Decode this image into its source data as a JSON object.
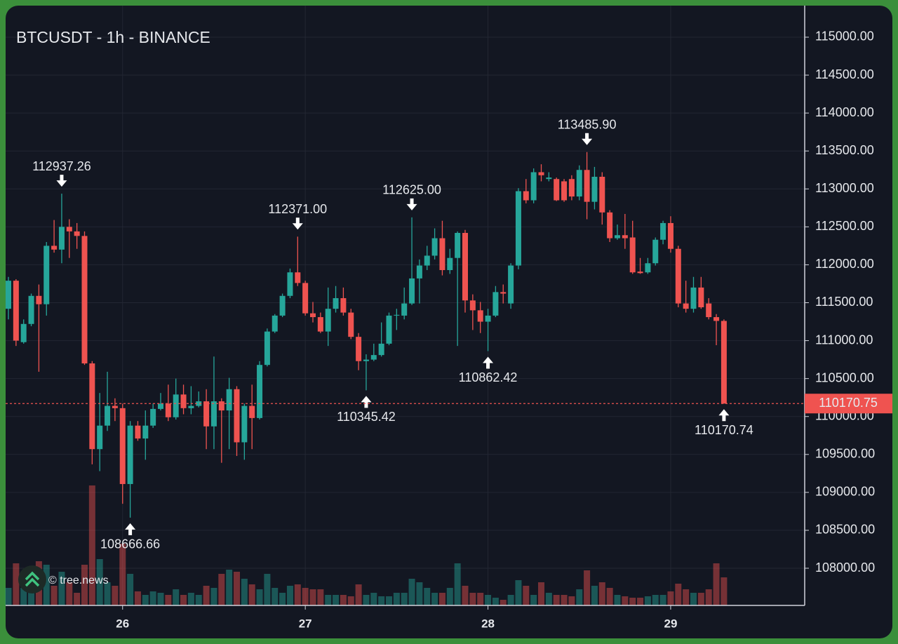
{
  "chart_data": {
    "type": "candlestick",
    "title": "BTCUSDT - 1h - BINANCE",
    "watermark": "© tree.news",
    "categories": [
      null,
      null,
      null,
      null,
      null,
      null,
      null,
      null,
      null,
      null,
      null,
      null,
      null,
      null,
      null,
      "26",
      null,
      null,
      null,
      null,
      null,
      null,
      null,
      null,
      null,
      null,
      null,
      null,
      null,
      null,
      null,
      null,
      null,
      null,
      null,
      null,
      null,
      null,
      null,
      "27",
      null,
      null,
      null,
      null,
      null,
      null,
      null,
      null,
      null,
      null,
      null,
      null,
      null,
      null,
      null,
      null,
      null,
      null,
      null,
      null,
      null,
      null,
      null,
      "28",
      null,
      null,
      null,
      null,
      null,
      null,
      null,
      null,
      null,
      null,
      null,
      null,
      null,
      null,
      null,
      null,
      null,
      null,
      null,
      null,
      null,
      null,
      null,
      "29",
      null,
      null,
      null,
      null,
      null,
      null,
      null
    ],
    "open": [
      111420,
      111790,
      110980,
      111220,
      111590,
      111480,
      112250,
      112200,
      112500,
      112440,
      112380,
      110700,
      109570,
      109880,
      110140,
      110110,
      109110,
      109880,
      109710,
      109880,
      110100,
      110170,
      109990,
      110290,
      110110,
      110140,
      110200,
      109870,
      110200,
      110080,
      110360,
      109660,
      110140,
      109980,
      110680,
      111120,
      111330,
      111590,
      111900,
      111760,
      111360,
      111310,
      111120,
      111420,
      111560,
      111370,
      111050,
      110730,
      110750,
      110810,
      110960,
      111330,
      111330,
      111490,
      111820,
      111990,
      112120,
      112350,
      111930,
      112090,
      112420,
      111530,
      111400,
      111250,
      111330,
      111640,
      111490,
      111990,
      112970,
      112850,
      113220,
      113130,
      113130,
      113100,
      113130,
      112900,
      113250,
      112830,
      113160,
      112690,
      112350,
      112390,
      112360,
      111910,
      111900,
      112020,
      112330,
      112550,
      112210,
      111490,
      111420,
      111700,
      111490,
      111310,
      111260
    ],
    "high": [
      111840,
      111810,
      111280,
      111620,
      111740,
      112300,
      112590,
      112937.26,
      112600,
      112550,
      112440,
      110730,
      110310,
      110590,
      110240,
      110170,
      109940,
      109940,
      110080,
      110170,
      110310,
      110420,
      110500,
      110420,
      110400,
      110330,
      110360,
      110790,
      110240,
      110510,
      110400,
      110170,
      110420,
      110730,
      111160,
      111350,
      111620,
      111950,
      112371,
      111790,
      111510,
      111370,
      111700,
      111720,
      111700,
      111420,
      111100,
      110820,
      110960,
      111240,
      111370,
      111420,
      111700,
      112625,
      112070,
      112250,
      112480,
      112580,
      112210,
      112440,
      112460,
      111610,
      111510,
      111420,
      111720,
      111740,
      112020,
      113010,
      113130,
      113270,
      113325,
      113220,
      113150,
      113130,
      113180,
      113310,
      113485.9,
      113290,
      113220,
      112720,
      112530,
      112670,
      112580,
      112090,
      112090,
      112360,
      112580,
      112640,
      112250,
      111790,
      111840,
      111840,
      111560,
      111350,
      111280
    ],
    "low": [
      111280,
      110930,
      110960,
      111190,
      110590,
      111330,
      112160,
      112020,
      112090,
      112210,
      110680,
      109370,
      109280,
      109810,
      109940,
      108850,
      108666.66,
      109680,
      109430,
      109850,
      110080,
      109940,
      109960,
      110030,
      110030,
      110120,
      109570,
      109570,
      109390,
      109570,
      109480,
      109430,
      109570,
      109960,
      110660,
      111100,
      111310,
      111560,
      111720,
      111330,
      111240,
      111100,
      110930,
      111370,
      111330,
      111020,
      110610,
      110345.42,
      110730,
      110790,
      110940,
      111140,
      111280,
      111470,
      111490,
      111930,
      112070,
      111860,
      111880,
      110930,
      111370,
      111140,
      111100,
      110862.42,
      111310,
      111490,
      111420,
      111940,
      112810,
      112810,
      113100,
      113100,
      112840,
      112830,
      112850,
      112850,
      112600,
      112730,
      112530,
      112300,
      112330,
      112210,
      111880,
      111880,
      111880,
      111990,
      112270,
      112160,
      111440,
      111370,
      111370,
      111420,
      111280,
      110940,
      110170.74
    ],
    "close": [
      111790,
      111000,
      111220,
      111590,
      111480,
      112250,
      112200,
      112500,
      112440,
      112380,
      110700,
      109570,
      109880,
      110140,
      110110,
      109110,
      109880,
      109710,
      109880,
      110100,
      110170,
      109990,
      110290,
      110110,
      110140,
      110200,
      109870,
      110200,
      110080,
      110360,
      109660,
      110140,
      109980,
      110680,
      111120,
      111330,
      111590,
      111900,
      111760,
      111360,
      111310,
      111120,
      111420,
      111560,
      111370,
      111050,
      110730,
      110750,
      110810,
      110960,
      111330,
      111340,
      111490,
      111820,
      111990,
      112120,
      112350,
      111930,
      112090,
      112420,
      111530,
      111400,
      111250,
      111330,
      111640,
      111620,
      111990,
      112970,
      112850,
      113220,
      113180,
      113150,
      112850,
      112850,
      112900,
      113250,
      112830,
      113160,
      112690,
      112350,
      112390,
      112350,
      111900,
      111890,
      112020,
      112330,
      112550,
      112210,
      111490,
      111420,
      111700,
      111440,
      111310,
      111260,
      110170.75
    ],
    "volume": [
      25,
      60,
      25,
      33,
      63,
      58,
      28,
      48,
      33,
      18,
      58,
      171,
      66,
      33,
      28,
      88,
      45,
      20,
      15,
      20,
      18,
      15,
      23,
      15,
      18,
      15,
      28,
      25,
      45,
      51,
      48,
      38,
      30,
      23,
      45,
      25,
      18,
      28,
      30,
      25,
      23,
      23,
      15,
      15,
      15,
      13,
      30,
      15,
      18,
      13,
      13,
      18,
      18,
      38,
      33,
      25,
      18,
      18,
      25,
      60,
      28,
      18,
      18,
      15,
      11,
      8,
      15,
      36,
      28,
      15,
      33,
      18,
      15,
      15,
      13,
      23,
      50,
      28,
      33,
      25,
      15,
      13,
      11,
      11,
      13,
      15,
      15,
      20,
      31,
      23,
      18,
      18,
      23,
      60,
      40
    ],
    "up_color": "#26a69a",
    "down_color": "#ef5350",
    "ylim": [
      107510,
      115416
    ],
    "yticks": [
      {
        "value": 108000,
        "label": "108000.00"
      },
      {
        "value": 108500,
        "label": "108500.00"
      },
      {
        "value": 109000,
        "label": "109000.00"
      },
      {
        "value": 109500,
        "label": "109500.00"
      },
      {
        "value": 110000,
        "label": "110000.00"
      },
      {
        "value": 110500,
        "label": "110500.00"
      },
      {
        "value": 111000,
        "label": "111000.00"
      },
      {
        "value": 111500,
        "label": "111500.00"
      },
      {
        "value": 112000,
        "label": "112000.00"
      },
      {
        "value": 112500,
        "label": "112500.00"
      },
      {
        "value": 113000,
        "label": "113000.00"
      },
      {
        "value": 113500,
        "label": "113500.00"
      },
      {
        "value": 114000,
        "label": "114000.00"
      },
      {
        "value": 114500,
        "label": "114500.00"
      },
      {
        "value": 115000,
        "label": "115000.00"
      }
    ],
    "grid": true,
    "annotations": [
      {
        "text": "112937.26",
        "candle": 7,
        "kind": "high"
      },
      {
        "text": "108666.66",
        "candle": 16,
        "kind": "low"
      },
      {
        "text": "112371.00",
        "candle": 38,
        "kind": "high"
      },
      {
        "text": "110345.42",
        "candle": 47,
        "kind": "low"
      },
      {
        "text": "112625.00",
        "candle": 53,
        "kind": "high"
      },
      {
        "text": "110862.42",
        "candle": 63,
        "kind": "low"
      },
      {
        "text": "113485.90",
        "candle": 76,
        "kind": "high"
      },
      {
        "text": "110170.74",
        "candle": 94,
        "kind": "low"
      }
    ],
    "last_price": {
      "value": 110170.75,
      "label": "110170.75"
    }
  }
}
